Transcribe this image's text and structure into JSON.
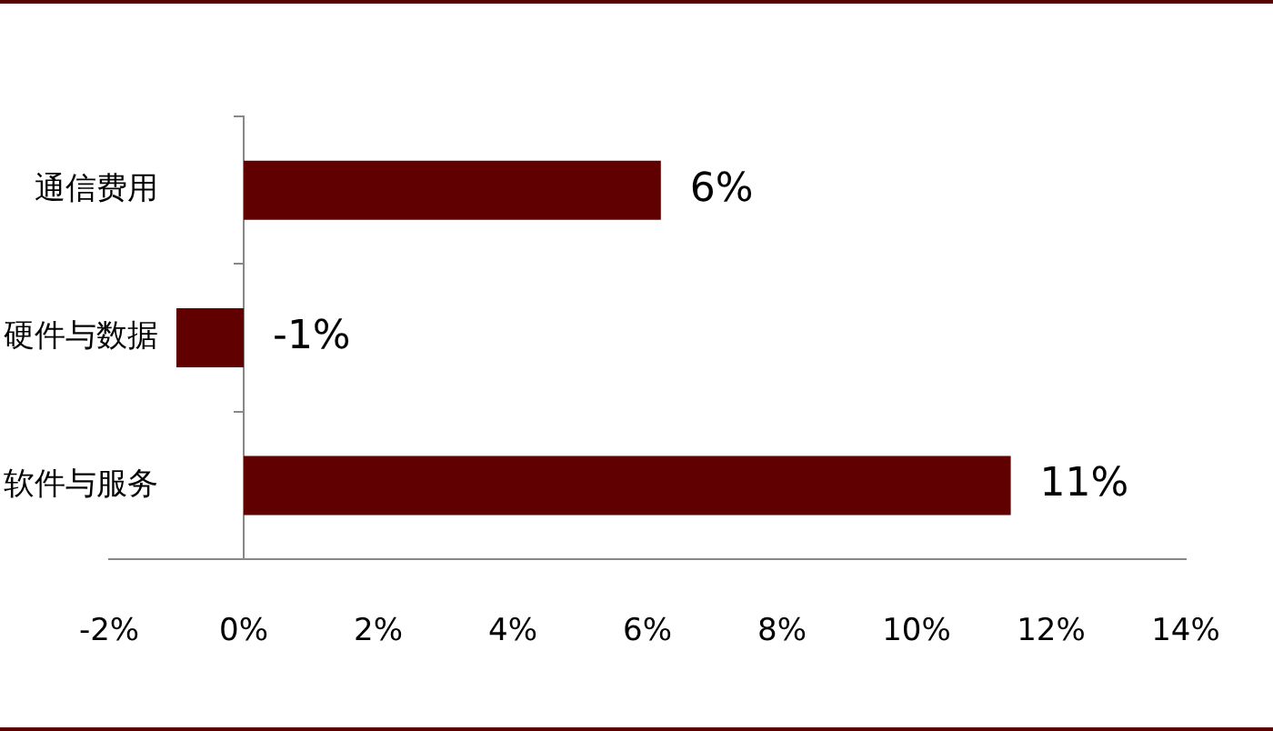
{
  "chart_data": {
    "type": "bar",
    "orientation": "horizontal",
    "categories": [
      "通信费用",
      "硬件与数据",
      "软件与服务"
    ],
    "values": [
      6.2,
      -1,
      11.4
    ],
    "value_labels": [
      "6%",
      "-1%",
      "11%"
    ],
    "color": "#600000",
    "xlim": [
      -2,
      14
    ],
    "xticks": [
      {
        "value": -2,
        "label": "-2%"
      },
      {
        "value": 0,
        "label": "0%"
      },
      {
        "value": 2,
        "label": "2%"
      },
      {
        "value": 4,
        "label": "4%"
      },
      {
        "value": 6,
        "label": "6%"
      },
      {
        "value": 8,
        "label": "8%"
      },
      {
        "value": 10,
        "label": "10%"
      },
      {
        "value": 12,
        "label": "12%"
      },
      {
        "value": 14,
        "label": "14%"
      }
    ]
  }
}
